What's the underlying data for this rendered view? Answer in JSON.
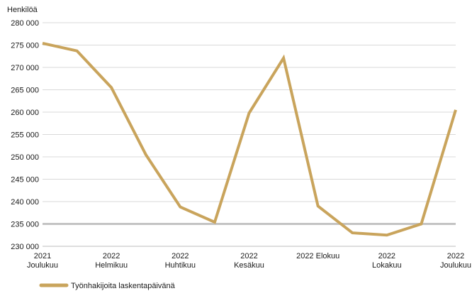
{
  "chart_data": {
    "type": "line",
    "ylabel": "Henkilöä",
    "ylim": [
      230000,
      280000
    ],
    "yticks": [
      230000,
      235000,
      240000,
      245000,
      250000,
      255000,
      260000,
      265000,
      270000,
      275000,
      280000
    ],
    "ytick_labels": [
      "230 000",
      "235 000",
      "240 000",
      "245 000",
      "250 000",
      "255 000",
      "260 000",
      "265 000",
      "270 000",
      "275 000",
      "280 000"
    ],
    "reference_line": 235000,
    "grid": true,
    "x_labels": [
      {
        "index": 0,
        "lines": [
          "2021",
          "Joulukuu"
        ]
      },
      {
        "index": 2,
        "lines": [
          "2022",
          "Helmikuu"
        ]
      },
      {
        "index": 4,
        "lines": [
          "2022",
          "Huhtikuu"
        ]
      },
      {
        "index": 6,
        "lines": [
          "2022",
          "Kesäkuu"
        ]
      },
      {
        "index": 8,
        "lines": [
          "2022 Elokuu"
        ]
      },
      {
        "index": 10,
        "lines": [
          "2022",
          "Lokakuu"
        ]
      },
      {
        "index": 12,
        "lines": [
          "2022",
          "Joulukuu"
        ]
      }
    ],
    "series": [
      {
        "name": "Työnhakijoita laskentapäivänä",
        "color": "#c9a45c",
        "values": [
          275400,
          273700,
          265500,
          250500,
          238800,
          235400,
          259800,
          272100,
          239000,
          233000,
          232500,
          235000,
          260500
        ]
      }
    ],
    "legend_position": "bottom-left"
  }
}
